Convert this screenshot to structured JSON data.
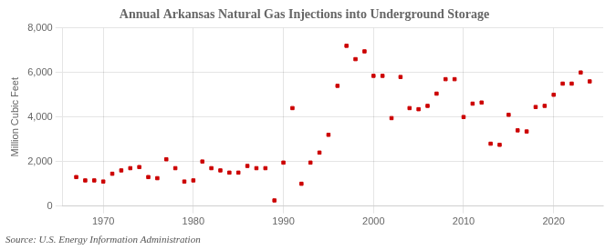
{
  "chart_data": {
    "type": "scatter",
    "title": "Annual Arkansas Natural Gas Injections into Underground Storage",
    "ylabel": "Million Cubic Feet",
    "annotation": "Source: U.S. Energy Information Administration",
    "color": "#cc0000",
    "marker": "square",
    "grid": true,
    "x": [
      1967,
      1968,
      1969,
      1970,
      1971,
      1972,
      1973,
      1974,
      1975,
      1976,
      1977,
      1978,
      1979,
      1980,
      1981,
      1982,
      1983,
      1984,
      1985,
      1986,
      1987,
      1988,
      1989,
      1990,
      1991,
      1992,
      1993,
      1994,
      1995,
      1996,
      1997,
      1998,
      1999,
      2000,
      2001,
      2002,
      2003,
      2004,
      2005,
      2006,
      2007,
      2008,
      2009,
      2010,
      2011,
      2012,
      2013,
      2014,
      2015,
      2016,
      2017,
      2018,
      2019,
      2020,
      2021,
      2022,
      2023,
      2024
    ],
    "values": [
      1300,
      1150,
      1150,
      1100,
      1450,
      1600,
      1700,
      1750,
      1300,
      1250,
      2100,
      1700,
      1100,
      1150,
      2000,
      1700,
      1600,
      1500,
      1500,
      1800,
      1700,
      1700,
      250,
      1950,
      4400,
      1000,
      1950,
      2400,
      3200,
      5400,
      7200,
      6600,
      6950,
      5850,
      5850,
      3950,
      5800,
      4400,
      4350,
      4500,
      5050,
      5700,
      5700,
      4000,
      4600,
      4650,
      2800,
      2750,
      4100,
      3400,
      3350,
      4450,
      4500,
      5000,
      5500,
      5500,
      6000,
      5600
    ],
    "xlim": [
      1965.5,
      2025.5
    ],
    "xticks": [
      1970,
      1980,
      1990,
      2000,
      2010,
      2020
    ],
    "ylim": [
      0,
      8000
    ],
    "yticks": [
      0,
      {
        "value": 2000,
        "label": "2,000"
      },
      {
        "value": 4000,
        "label": "4,000"
      },
      {
        "value": 6000,
        "label": "6,000"
      },
      {
        "value": 8000,
        "label": "8,000"
      }
    ]
  }
}
